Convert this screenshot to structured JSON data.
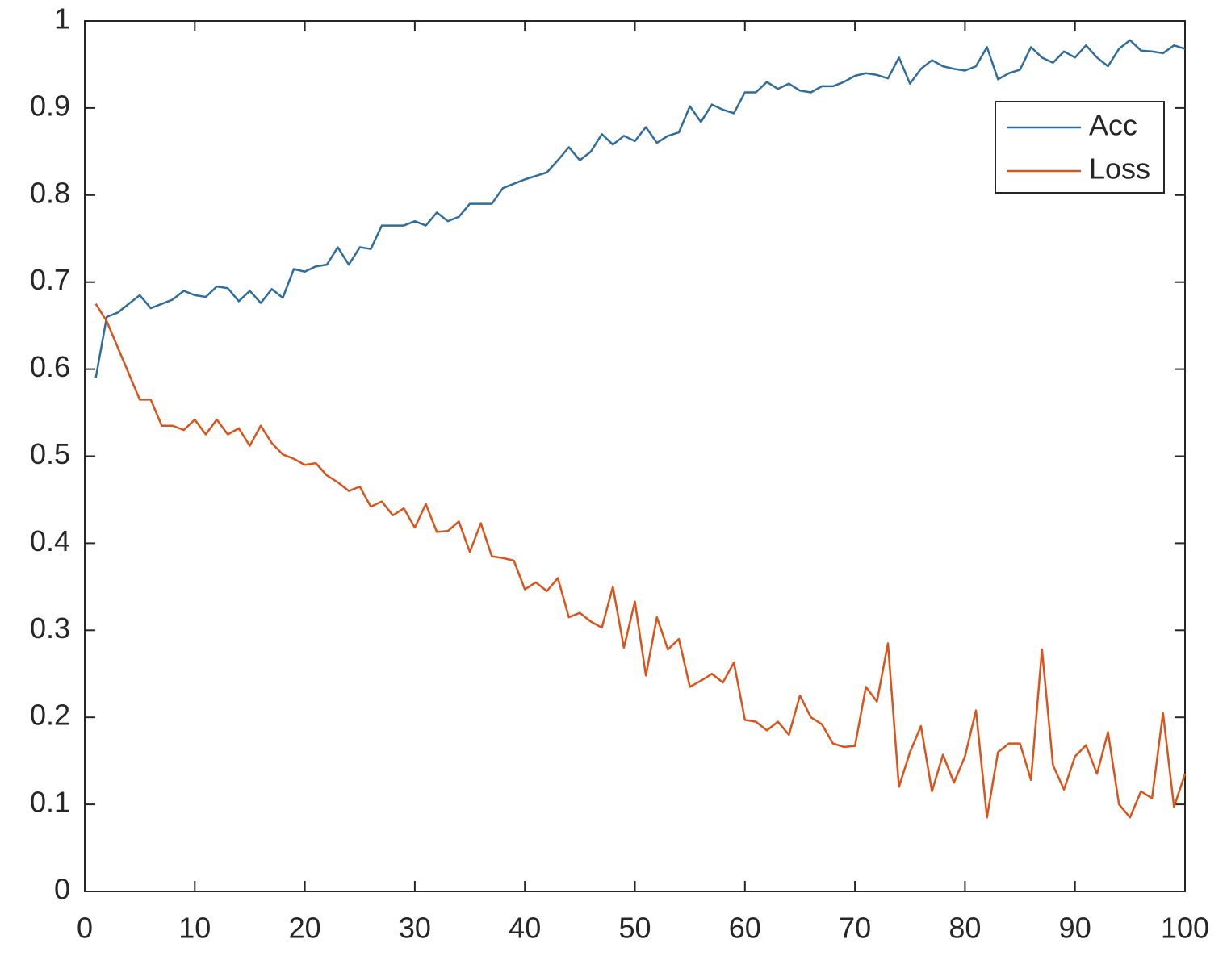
{
  "chart_data": {
    "type": "line",
    "x": [
      1,
      2,
      3,
      4,
      5,
      6,
      7,
      8,
      9,
      10,
      11,
      12,
      13,
      14,
      15,
      16,
      17,
      18,
      19,
      20,
      21,
      22,
      23,
      24,
      25,
      26,
      27,
      28,
      29,
      30,
      31,
      32,
      33,
      34,
      35,
      36,
      37,
      38,
      39,
      40,
      41,
      42,
      43,
      44,
      45,
      46,
      47,
      48,
      49,
      50,
      51,
      52,
      53,
      54,
      55,
      56,
      57,
      58,
      59,
      60,
      61,
      62,
      63,
      64,
      65,
      66,
      67,
      68,
      69,
      70,
      71,
      72,
      73,
      74,
      75,
      76,
      77,
      78,
      79,
      80,
      81,
      82,
      83,
      84,
      85,
      86,
      87,
      88,
      89,
      90,
      91,
      92,
      93,
      94,
      95,
      96,
      97,
      98,
      99,
      100
    ],
    "series": [
      {
        "name": "Acc",
        "color": "#2f6d9e",
        "values": [
          0.59,
          0.66,
          0.665,
          0.675,
          0.685,
          0.67,
          0.675,
          0.68,
          0.69,
          0.685,
          0.683,
          0.695,
          0.693,
          0.678,
          0.69,
          0.676,
          0.692,
          0.682,
          0.715,
          0.712,
          0.718,
          0.72,
          0.74,
          0.72,
          0.74,
          0.738,
          0.765,
          0.765,
          0.765,
          0.77,
          0.765,
          0.78,
          0.77,
          0.775,
          0.79,
          0.79,
          0.79,
          0.808,
          0.813,
          0.818,
          0.822,
          0.826,
          0.84,
          0.855,
          0.84,
          0.85,
          0.87,
          0.858,
          0.868,
          0.862,
          0.878,
          0.86,
          0.868,
          0.872,
          0.902,
          0.884,
          0.904,
          0.898,
          0.894,
          0.918,
          0.918,
          0.93,
          0.922,
          0.928,
          0.92,
          0.918,
          0.925,
          0.925,
          0.93,
          0.937,
          0.94,
          0.938,
          0.934,
          0.958,
          0.928,
          0.945,
          0.955,
          0.948,
          0.945,
          0.943,
          0.948,
          0.97,
          0.933,
          0.94,
          0.944,
          0.97,
          0.958,
          0.952,
          0.965,
          0.958,
          0.972,
          0.958,
          0.948,
          0.968,
          0.978,
          0.966,
          0.965,
          0.963,
          0.972,
          0.968
        ]
      },
      {
        "name": "Loss",
        "color": "#d9541a",
        "values": [
          0.675,
          0.655,
          0.625,
          0.595,
          0.565,
          0.565,
          0.535,
          0.535,
          0.53,
          0.542,
          0.525,
          0.542,
          0.525,
          0.532,
          0.512,
          0.535,
          0.515,
          0.502,
          0.497,
          0.49,
          0.492,
          0.478,
          0.47,
          0.46,
          0.465,
          0.442,
          0.448,
          0.432,
          0.44,
          0.418,
          0.445,
          0.413,
          0.414,
          0.425,
          0.39,
          0.423,
          0.385,
          0.383,
          0.38,
          0.347,
          0.355,
          0.345,
          0.36,
          0.315,
          0.32,
          0.31,
          0.303,
          0.35,
          0.28,
          0.333,
          0.248,
          0.315,
          0.278,
          0.29,
          0.235,
          0.242,
          0.25,
          0.24,
          0.263,
          0.197,
          0.195,
          0.185,
          0.195,
          0.18,
          0.225,
          0.2,
          0.192,
          0.17,
          0.166,
          0.167,
          0.235,
          0.218,
          0.285,
          0.12,
          0.16,
          0.19,
          0.115,
          0.157,
          0.125,
          0.155,
          0.208,
          0.085,
          0.16,
          0.17,
          0.17,
          0.128,
          0.278,
          0.145,
          0.117,
          0.155,
          0.168,
          0.135,
          0.183,
          0.1,
          0.085,
          0.115,
          0.107,
          0.205,
          0.097,
          0.135
        ]
      }
    ],
    "xlim": [
      0,
      100
    ],
    "xticks": [
      0,
      10,
      20,
      30,
      40,
      50,
      60,
      70,
      80,
      90,
      100
    ],
    "ylim": [
      0,
      1
    ],
    "yticks": [
      0,
      0.1,
      0.2,
      0.3,
      0.4,
      0.5,
      0.6,
      0.7,
      0.8,
      0.9,
      1
    ],
    "grid": false,
    "legend": "northeast"
  }
}
